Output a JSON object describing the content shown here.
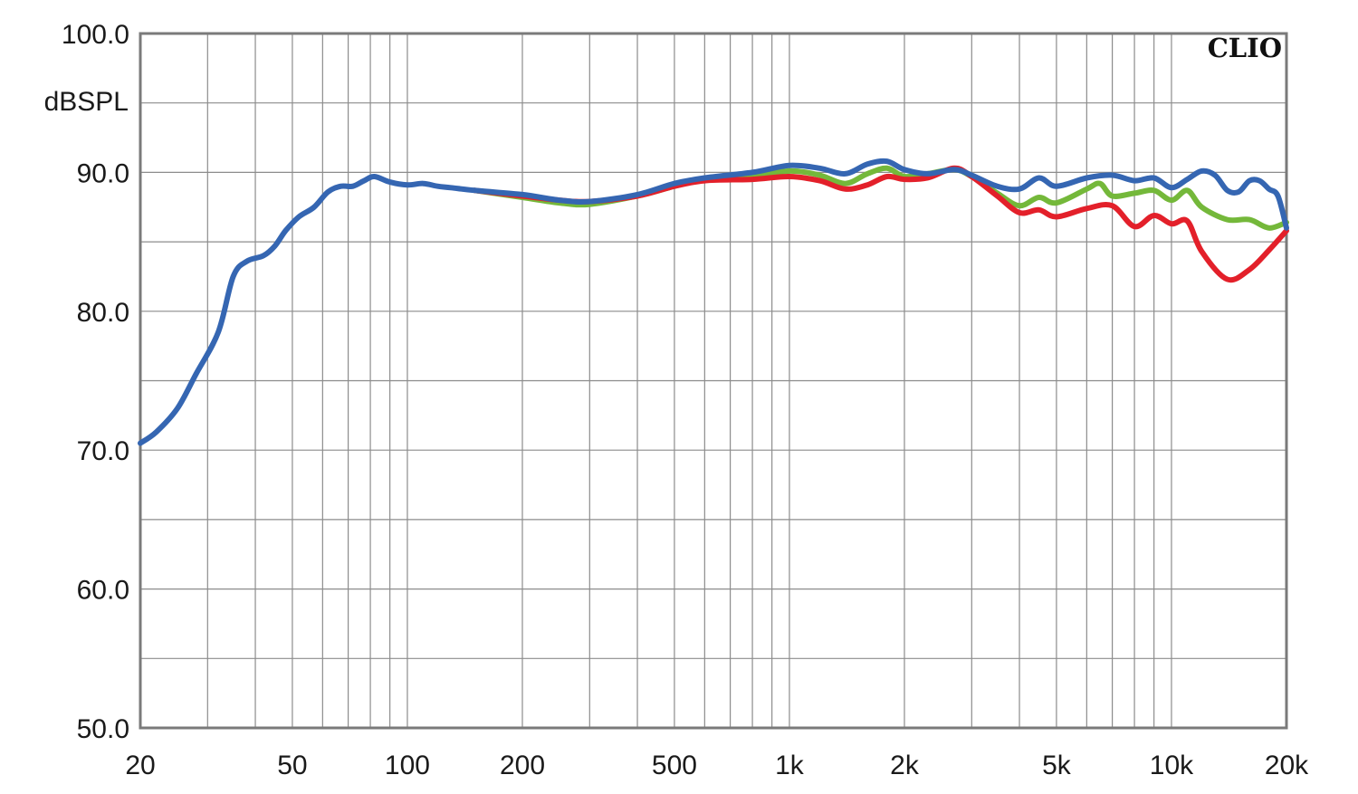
{
  "chart_data": {
    "type": "line",
    "brand": "CLIO",
    "ylabel": "dBSPL",
    "x_scale": "log",
    "xlim": [
      20,
      20000
    ],
    "ylim": [
      50,
      100
    ],
    "grid": true,
    "legend": "none",
    "y_ticks": [
      {
        "value": 100,
        "label": "100.0"
      },
      {
        "value": 90,
        "label": "90.0"
      },
      {
        "value": 80,
        "label": "80.0"
      },
      {
        "value": 70,
        "label": "70.0"
      },
      {
        "value": 60,
        "label": "60.0"
      },
      {
        "value": 50,
        "label": "50.0"
      }
    ],
    "x_ticks": [
      {
        "value": 20,
        "label": "20"
      },
      {
        "value": 50,
        "label": "50"
      },
      {
        "value": 100,
        "label": "100"
      },
      {
        "value": 200,
        "label": "200"
      },
      {
        "value": 500,
        "label": "500"
      },
      {
        "value": 1000,
        "label": "1k"
      },
      {
        "value": 2000,
        "label": "2k"
      },
      {
        "value": 5000,
        "label": "5k"
      },
      {
        "value": 10000,
        "label": "10k"
      },
      {
        "value": 20000,
        "label": "20k"
      }
    ],
    "series": [
      {
        "color": "#74b83a",
        "points": [
          [
            150,
            88.7
          ],
          [
            200,
            88.2
          ],
          [
            250,
            87.8
          ],
          [
            300,
            87.7
          ],
          [
            400,
            88.3
          ],
          [
            500,
            89.0
          ],
          [
            600,
            89.5
          ],
          [
            800,
            89.7
          ],
          [
            1000,
            90.1
          ],
          [
            1200,
            89.8
          ],
          [
            1400,
            89.2
          ],
          [
            1600,
            89.9
          ],
          [
            1800,
            90.3
          ],
          [
            2000,
            89.7
          ],
          [
            2300,
            89.9
          ],
          [
            2700,
            90.2
          ],
          [
            3000,
            89.7
          ],
          [
            3500,
            88.5
          ],
          [
            4000,
            87.6
          ],
          [
            4500,
            88.2
          ],
          [
            5000,
            87.8
          ],
          [
            6000,
            88.8
          ],
          [
            6500,
            89.2
          ],
          [
            7000,
            88.3
          ],
          [
            8000,
            88.5
          ],
          [
            9000,
            88.7
          ],
          [
            10000,
            88.0
          ],
          [
            11000,
            88.7
          ],
          [
            12000,
            87.5
          ],
          [
            14000,
            86.6
          ],
          [
            16000,
            86.6
          ],
          [
            18000,
            86.0
          ],
          [
            20000,
            86.4
          ]
        ]
      },
      {
        "color": "#e3202a",
        "points": [
          [
            150,
            88.7
          ],
          [
            200,
            88.3
          ],
          [
            250,
            88.0
          ],
          [
            300,
            87.9
          ],
          [
            400,
            88.3
          ],
          [
            500,
            89.0
          ],
          [
            600,
            89.4
          ],
          [
            800,
            89.5
          ],
          [
            1000,
            89.7
          ],
          [
            1200,
            89.4
          ],
          [
            1400,
            88.8
          ],
          [
            1600,
            89.1
          ],
          [
            1800,
            89.7
          ],
          [
            2000,
            89.5
          ],
          [
            2300,
            89.6
          ],
          [
            2700,
            90.3
          ],
          [
            3000,
            89.7
          ],
          [
            3500,
            88.3
          ],
          [
            4000,
            87.1
          ],
          [
            4500,
            87.3
          ],
          [
            5000,
            86.8
          ],
          [
            6000,
            87.4
          ],
          [
            7000,
            87.6
          ],
          [
            8000,
            86.1
          ],
          [
            9000,
            86.9
          ],
          [
            10000,
            86.3
          ],
          [
            11000,
            86.5
          ],
          [
            12000,
            84.3
          ],
          [
            14000,
            82.3
          ],
          [
            16000,
            83.0
          ],
          [
            18000,
            84.4
          ],
          [
            20000,
            85.8
          ]
        ]
      },
      {
        "color": "#3566b2",
        "points": [
          [
            20,
            70.5
          ],
          [
            22,
            71.3
          ],
          [
            25,
            73.0
          ],
          [
            28,
            75.5
          ],
          [
            32,
            78.5
          ],
          [
            35,
            82.5
          ],
          [
            38,
            83.6
          ],
          [
            42,
            84.0
          ],
          [
            45,
            84.7
          ],
          [
            48,
            85.8
          ],
          [
            52,
            86.8
          ],
          [
            57,
            87.5
          ],
          [
            62,
            88.6
          ],
          [
            67,
            89.0
          ],
          [
            72,
            89.0
          ],
          [
            77,
            89.4
          ],
          [
            82,
            89.7
          ],
          [
            90,
            89.3
          ],
          [
            100,
            89.1
          ],
          [
            110,
            89.2
          ],
          [
            120,
            89.0
          ],
          [
            130,
            88.9
          ],
          [
            150,
            88.7
          ],
          [
            200,
            88.4
          ],
          [
            250,
            88.0
          ],
          [
            300,
            87.9
          ],
          [
            400,
            88.4
          ],
          [
            500,
            89.2
          ],
          [
            600,
            89.6
          ],
          [
            800,
            90.0
          ],
          [
            1000,
            90.5
          ],
          [
            1200,
            90.3
          ],
          [
            1400,
            89.9
          ],
          [
            1600,
            90.6
          ],
          [
            1800,
            90.8
          ],
          [
            2000,
            90.2
          ],
          [
            2300,
            89.9
          ],
          [
            2700,
            90.2
          ],
          [
            3000,
            89.8
          ],
          [
            3500,
            89.0
          ],
          [
            4000,
            88.8
          ],
          [
            4500,
            89.6
          ],
          [
            5000,
            89.0
          ],
          [
            6000,
            89.6
          ],
          [
            7000,
            89.8
          ],
          [
            8000,
            89.4
          ],
          [
            9000,
            89.6
          ],
          [
            10000,
            88.9
          ],
          [
            11000,
            89.5
          ],
          [
            12000,
            90.1
          ],
          [
            13000,
            89.8
          ],
          [
            14000,
            88.7
          ],
          [
            15000,
            88.6
          ],
          [
            16000,
            89.4
          ],
          [
            17000,
            89.4
          ],
          [
            18000,
            88.8
          ],
          [
            19000,
            88.3
          ],
          [
            20000,
            86.0
          ]
        ]
      }
    ]
  }
}
